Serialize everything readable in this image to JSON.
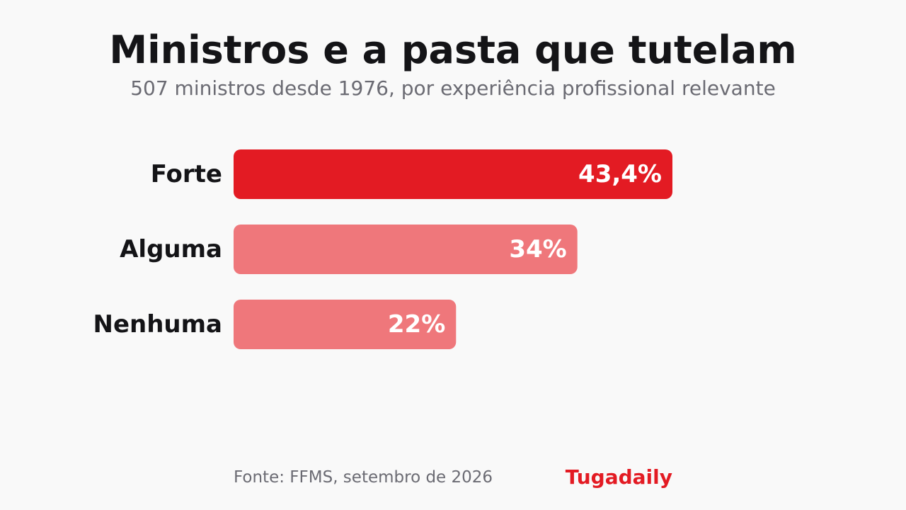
{
  "header": {
    "title": "Ministros e a pasta que tutelam",
    "subtitle": "507 ministros desde 1976, por experiência profissional relevante"
  },
  "chart_data": {
    "type": "bar",
    "orientation": "horizontal",
    "categories": [
      "Forte",
      "Alguma",
      "Nenhuma"
    ],
    "values": [
      43.4,
      34,
      22
    ],
    "value_labels": [
      "43,4%",
      "34%",
      "22%"
    ],
    "colors": [
      "#e31b23",
      "#ef777b",
      "#ef777b"
    ],
    "xlim": [
      0,
      43.4
    ],
    "grid": false,
    "legend": "none"
  },
  "footer": {
    "source": "Fonte: FFMS, setembro de 2026",
    "brand": "Tugadaily"
  }
}
